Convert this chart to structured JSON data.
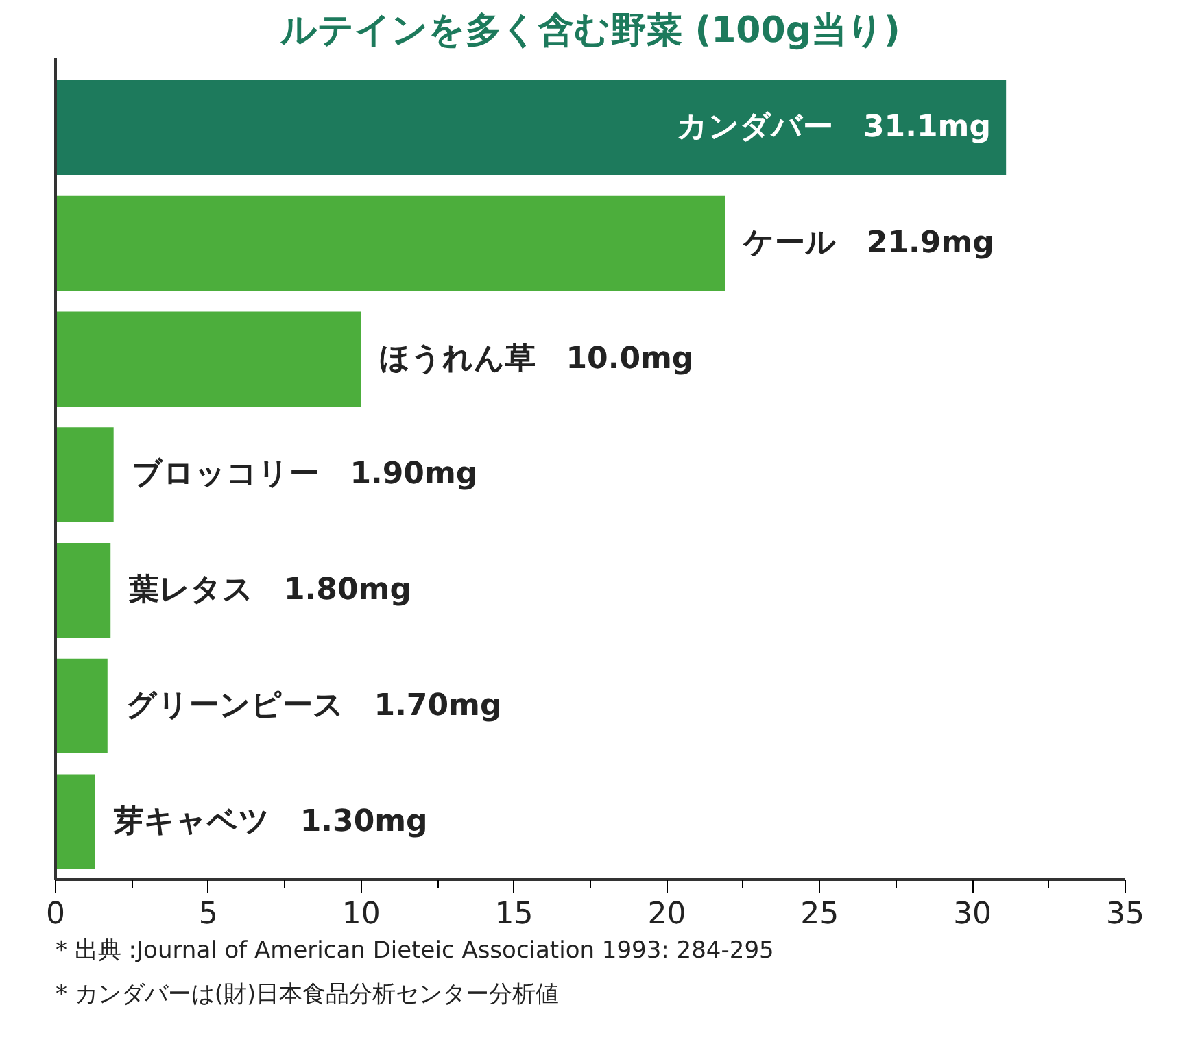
{
  "chart_data": {
    "type": "bar",
    "orientation": "horizontal",
    "title": "ルテインを多く含む野菜 (100g当り)",
    "categories": [
      "カンダバー",
      "ケール",
      "ほうれん草",
      "ブロッコリー",
      "葉レタス",
      "グリーンピース",
      "芽キャベツ"
    ],
    "values": [
      31.1,
      21.9,
      10.0,
      1.9,
      1.8,
      1.7,
      1.3
    ],
    "value_labels": [
      "31.1mg",
      "21.9mg",
      "10.0mg",
      "1.90mg",
      "1.80mg",
      "1.70mg",
      "1.30mg"
    ],
    "colors": [
      "#1d7a5c",
      "#4cae3c",
      "#4cae3c",
      "#4cae3c",
      "#4cae3c",
      "#4cae3c",
      "#4cae3c"
    ],
    "xlim": [
      0,
      35
    ],
    "xticks": [
      0,
      {
        "value": 2.5,
        "label": null
      },
      5,
      {
        "value": 7.5,
        "label": null
      },
      10,
      {
        "value": 12.5,
        "label": null
      },
      15,
      {
        "value": 17.5,
        "label": null
      },
      20,
      {
        "value": 22.5,
        "label": null
      },
      25,
      {
        "value": 27.5,
        "label": null
      },
      30,
      {
        "value": 32.5,
        "label": null
      },
      35
    ],
    "tick_labels": "x",
    "grid": false,
    "annotations": [
      "* 出典 :Journal of American Dieteic Association 1993: 284-295",
      "* カンダバーは(財)日本食品分析センター分析値"
    ]
  }
}
